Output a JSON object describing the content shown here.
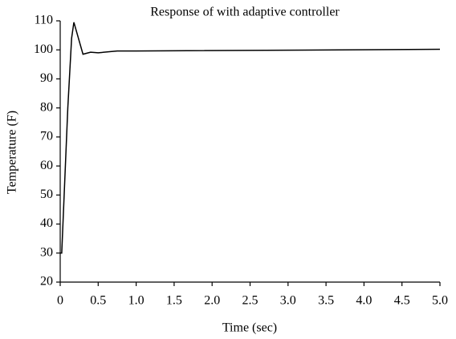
{
  "chart_data": {
    "type": "line",
    "title": "Response of with adaptive controller",
    "x_label": "Time (sec)",
    "y_label": "Temperature (F)",
    "x": [
      0,
      0.02,
      0.1,
      0.15,
      0.18,
      0.3,
      0.4,
      0.5,
      0.75,
      1.0,
      5.0
    ],
    "series": [
      {
        "name": "Temperature",
        "color": "#000000",
        "values": [
          30,
          30,
          80,
          104,
          109.5,
          98.5,
          99.2,
          99.0,
          99.6,
          99.6,
          100.2
        ]
      }
    ],
    "xlim": [
      0,
      5
    ],
    "ylim": [
      20,
      110
    ],
    "xticks": [
      0,
      0.5,
      {
        "value": 1,
        "label": "1.0"
      },
      1.5,
      {
        "value": 2,
        "label": "2.0"
      },
      2.5,
      {
        "value": 3,
        "label": "3.0"
      },
      3.5,
      {
        "value": 4,
        "label": "4.0"
      },
      4.5,
      {
        "value": 5,
        "label": "5.0"
      }
    ],
    "yticks": [
      20,
      30,
      40,
      50,
      60,
      70,
      80,
      90,
      100,
      110
    ]
  }
}
